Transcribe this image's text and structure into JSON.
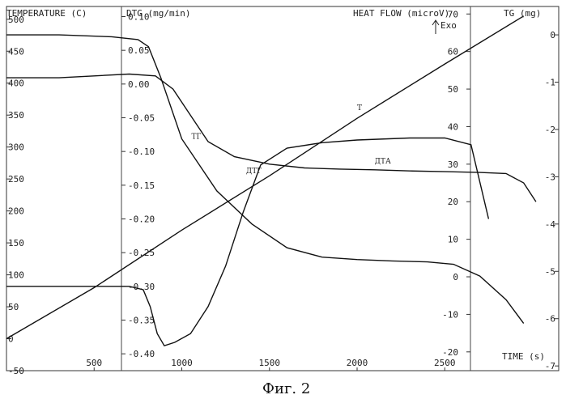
{
  "caption": "Фиг. 2",
  "chart_data": {
    "type": "line",
    "x_label": "TIME (s)",
    "x_ticks": [
      500,
      1000,
      1500,
      2000,
      2500
    ],
    "xlim": [
      0,
      3150
    ],
    "axes": {
      "temperature": {
        "label": "TEMPERATURE (C)",
        "ticks": [
          500,
          450,
          400,
          350,
          300,
          250,
          200,
          150,
          100,
          50,
          0,
          -50
        ],
        "ylim": [
          -50,
          520
        ]
      },
      "dtg": {
        "label": "DTG (mg/min)",
        "ticks": [
          "0.10",
          "0.05",
          "0.00",
          "-0.05",
          "-0.10",
          "-0.15",
          "-0.20",
          "-0.25",
          "-0.30",
          "-0.35",
          "-0.40"
        ],
        "ylim": [
          -0.425,
          0.115
        ]
      },
      "heat_flow": {
        "label": "HEAT FLOW (microV)",
        "ticks": [
          70,
          60,
          50,
          40,
          30,
          20,
          10,
          0,
          -10,
          -20
        ],
        "ylim": [
          -25,
          72
        ]
      },
      "tg": {
        "label": "TG (mg)",
        "ticks": [
          "0",
          "-1",
          "-2",
          "-3",
          "-4",
          "-5",
          "-6",
          "-7"
        ],
        "ylim": [
          -7.1,
          0.6
        ]
      }
    },
    "exo_label": "Exo",
    "series": [
      {
        "name": "T",
        "axis": "temperature",
        "x": [
          0,
          500,
          1000,
          1500,
          2000,
          2500,
          2950
        ],
        "y": [
          0,
          80,
          170,
          255,
          345,
          430,
          505
        ]
      },
      {
        "name": "ТГ",
        "axis": "tg",
        "x": [
          0,
          300,
          600,
          750,
          810,
          880,
          1000,
          1200,
          1400,
          1600,
          1800,
          2000,
          2200,
          2400,
          2550,
          2700,
          2850,
          2950
        ],
        "y": [
          0,
          0,
          -0.04,
          -0.1,
          -0.25,
          -0.9,
          -2.2,
          -3.3,
          -4.0,
          -4.5,
          -4.7,
          -4.75,
          -4.78,
          -4.8,
          -4.85,
          -5.1,
          -5.6,
          -6.1
        ]
      },
      {
        "name": "ДТГ",
        "axis": "dtg",
        "x": [
          0,
          400,
          700,
          780,
          820,
          860,
          900,
          960,
          1050,
          1150,
          1250,
          1350,
          1450,
          1600,
          1800,
          2000,
          2300,
          2500,
          2650,
          2750
        ],
        "y": [
          -0.3,
          -0.3,
          -0.3,
          -0.305,
          -0.33,
          -0.37,
          -0.388,
          -0.383,
          -0.37,
          -0.33,
          -0.27,
          -0.19,
          -0.12,
          -0.095,
          -0.087,
          -0.083,
          -0.08,
          -0.08,
          -0.09,
          -0.2
        ]
      },
      {
        "name": "ДТА",
        "axis": "heat_flow",
        "x": [
          0,
          300,
          500,
          700,
          850,
          950,
          1050,
          1150,
          1300,
          1500,
          1700,
          1900,
          2100,
          2300,
          2500,
          2700,
          2850,
          2950,
          3020
        ],
        "y": [
          53,
          53,
          53.5,
          54,
          53.5,
          50,
          43,
          36,
          32,
          30,
          29,
          28.7,
          28.5,
          28.2,
          28,
          27.8,
          27.5,
          25,
          20
        ]
      }
    ]
  }
}
